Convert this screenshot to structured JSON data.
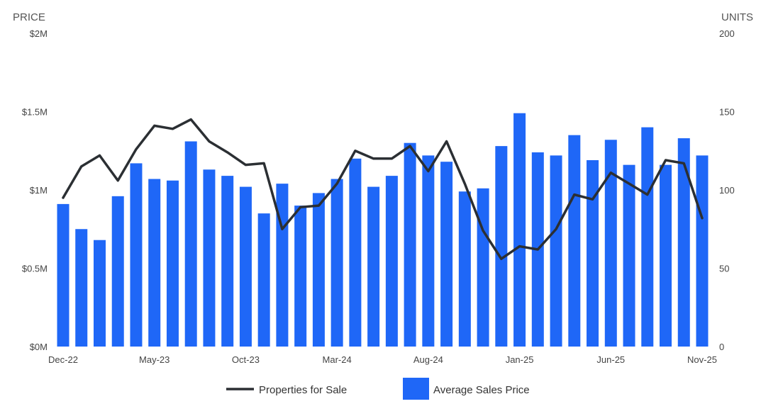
{
  "chart_data": {
    "type": "bar",
    "y_left_title": "PRICE",
    "y_right_title": "UNITS",
    "y_left_ticks": [
      "$0M",
      "$0.5M",
      "$1M",
      "$1.5M",
      "$2M"
    ],
    "y_right_ticks": [
      "0",
      "50",
      "100",
      "150",
      "200"
    ],
    "y_left_range": [
      0,
      2000000
    ],
    "y_right_range": [
      0,
      200
    ],
    "x_tick_labels": [
      "Dec-22",
      "May-23",
      "Oct-23",
      "Mar-24",
      "Aug-24",
      "Jan-25",
      "Jun-25",
      "Nov-25"
    ],
    "categories": [
      "Dec-22",
      "Jan-23",
      "Feb-23",
      "Mar-23",
      "Apr-23",
      "May-23",
      "Jun-23",
      "Jul-23",
      "Aug-23",
      "Sep-23",
      "Oct-23",
      "Nov-23",
      "Dec-23",
      "Jan-24",
      "Feb-24",
      "Mar-24",
      "Apr-24",
      "May-24",
      "Jun-24",
      "Jul-24",
      "Aug-24",
      "Sep-24",
      "Oct-24",
      "Nov-24",
      "Dec-24",
      "Jan-25",
      "Feb-25",
      "Mar-25",
      "Apr-25",
      "May-25",
      "Jun-25",
      "Jul-25",
      "Aug-25",
      "Sep-25",
      "Oct-25",
      "Nov-25"
    ],
    "series": [
      {
        "name": "Average Sales Price",
        "kind": "bar",
        "axis": "left",
        "color": "#1F67F7",
        "values": [
          910000,
          750000,
          680000,
          960000,
          1170000,
          1070000,
          1060000,
          1310000,
          1130000,
          1090000,
          1020000,
          850000,
          1040000,
          900000,
          980000,
          1070000,
          1200000,
          1020000,
          1090000,
          1300000,
          1220000,
          1180000,
          990000,
          1010000,
          1280000,
          1490000,
          1240000,
          1220000,
          1350000,
          1190000,
          1320000,
          1160000,
          1400000,
          1160000,
          1330000,
          1220000
        ]
      },
      {
        "name": "Properties for Sale",
        "kind": "line",
        "axis": "right",
        "color": "#2B2F33",
        "values": [
          95,
          115,
          122,
          106,
          126,
          141,
          139,
          145,
          131,
          124,
          116,
          117,
          75,
          89,
          90,
          104,
          125,
          120,
          120,
          128,
          112,
          131,
          104,
          74,
          56,
          64,
          62,
          75,
          97,
          94,
          111,
          104,
          97,
          119,
          117,
          82
        ]
      }
    ],
    "legend": [
      "Properties for Sale",
      "Average Sales Price"
    ],
    "legend_position": "bottom-center",
    "grid": false
  }
}
